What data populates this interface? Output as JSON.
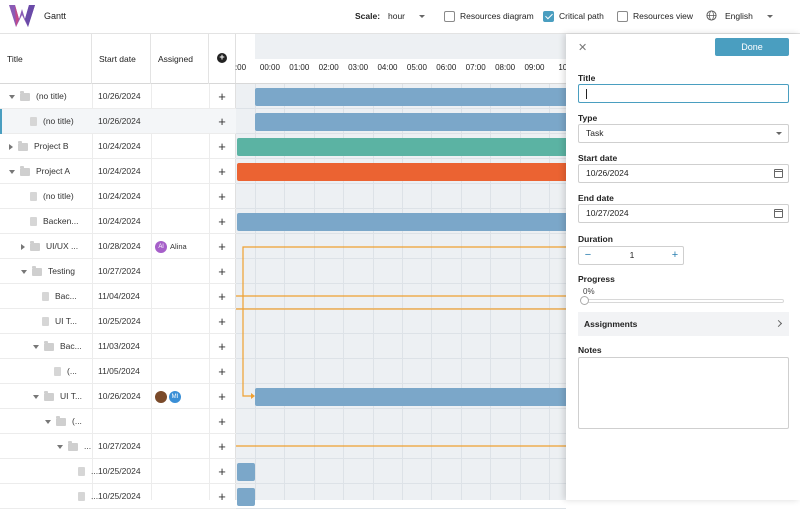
{
  "app": {
    "title": "Gantt"
  },
  "toolbar": {
    "scale_label": "Scale:",
    "scale_value": "hour",
    "resources_diagram": {
      "label": "Resources diagram",
      "checked": false
    },
    "critical_path": {
      "label": "Critical path",
      "checked": true
    },
    "resources_view": {
      "label": "Resources view",
      "checked": false
    },
    "language": "English"
  },
  "grid": {
    "columns": {
      "title": "Title",
      "start_date": "Start date",
      "assigned": "Assigned"
    },
    "rows": [
      {
        "title": "(no title)",
        "start": "10/26/2024",
        "level": 0,
        "type": "folder",
        "expand": "down",
        "assigned": []
      },
      {
        "title": "(no title)",
        "start": "10/26/2024",
        "level": 1,
        "type": "file",
        "expand": "",
        "assigned": [],
        "selected": true
      },
      {
        "title": "Project B",
        "start": "10/24/2024",
        "level": 0,
        "type": "folder",
        "expand": "right",
        "assigned": []
      },
      {
        "title": "Project A",
        "start": "10/24/2024",
        "level": 0,
        "type": "folder",
        "expand": "down",
        "assigned": []
      },
      {
        "title": "(no title)",
        "start": "10/24/2024",
        "level": 1,
        "type": "file",
        "expand": "",
        "assigned": []
      },
      {
        "title": "Backen...",
        "start": "10/24/2024",
        "level": 1,
        "type": "file",
        "expand": "",
        "assigned": []
      },
      {
        "title": "UI/UX ...",
        "start": "10/28/2024",
        "level": 1,
        "type": "folder",
        "expand": "right",
        "assigned": [
          {
            "initials": "Al",
            "name": "Alina",
            "color": "#a65fc9"
          }
        ]
      },
      {
        "title": "Testing",
        "start": "10/27/2024",
        "level": 1,
        "type": "folder",
        "expand": "down",
        "assigned": []
      },
      {
        "title": "Bac...",
        "start": "11/04/2024",
        "level": 2,
        "type": "file",
        "expand": "",
        "assigned": []
      },
      {
        "title": "UI T...",
        "start": "10/25/2024",
        "level": 2,
        "type": "file",
        "expand": "",
        "assigned": []
      },
      {
        "title": "Bac...",
        "start": "11/03/2024",
        "level": 2,
        "type": "folder",
        "expand": "down",
        "assigned": []
      },
      {
        "title": "(...",
        "start": "11/05/2024",
        "level": 3,
        "type": "file",
        "expand": "",
        "assigned": []
      },
      {
        "title": "UI T...",
        "start": "10/26/2024",
        "level": 2,
        "type": "folder",
        "expand": "down",
        "assigned": [
          {
            "initials": "",
            "name": "",
            "color": "#7a4a2a"
          },
          {
            "initials": "MI",
            "name": "",
            "color": "#3a8fd6"
          }
        ]
      },
      {
        "title": "(...",
        "start": "",
        "level": 3,
        "type": "folder",
        "expand": "down",
        "assigned": []
      },
      {
        "title": "...",
        "start": "10/27/2024",
        "level": 4,
        "type": "folder",
        "expand": "down",
        "assigned": []
      },
      {
        "title": "...",
        "start": "10/25/2024",
        "level": 5,
        "type": "file",
        "expand": "",
        "assigned": []
      },
      {
        "title": "...",
        "start": "10/25/2024",
        "level": 5,
        "type": "file",
        "expand": "",
        "assigned": []
      }
    ]
  },
  "timeline": {
    "hours": [
      ":00",
      "00:00",
      "01:00",
      "02:00",
      "03:00",
      "04:00",
      "05:00",
      "06:00",
      "07:00",
      "08:00",
      "09:00",
      "10:"
    ],
    "colors": {
      "task": "#7ba7c9",
      "project_b": "#5bb3a3",
      "project_a": "#eb6332",
      "dependency": "#f0a030"
    }
  },
  "editor": {
    "done_label": "Done",
    "title_label": "Title",
    "title_value": "",
    "type_label": "Type",
    "type_value": "Task",
    "start_label": "Start date",
    "start_value": "10/26/2024",
    "end_label": "End date",
    "end_value": "10/27/2024",
    "duration_label": "Duration",
    "duration_value": "1",
    "progress_label": "Progress",
    "progress_value": "0%",
    "progress_fraction": 0,
    "assignments_label": "Assignments",
    "notes_label": "Notes"
  }
}
